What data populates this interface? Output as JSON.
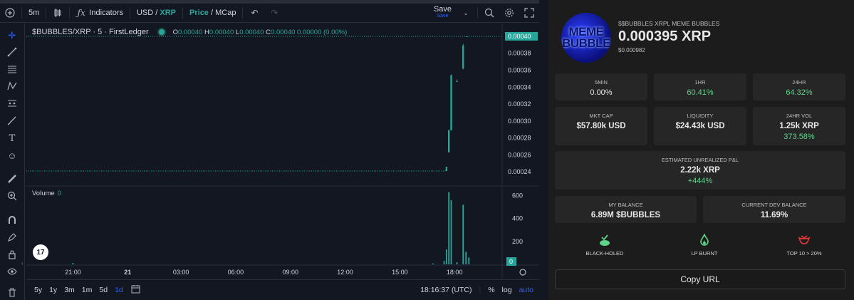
{
  "toolbar": {
    "interval": "5m",
    "indicators_label": "Indicators",
    "pair_base": "USD",
    "pair_sep": " / ",
    "pair_quote": "XRP",
    "price_label": "Price",
    "mcap_sep": " / ",
    "mcap_label": "MCap",
    "save_label": "Save",
    "save_sub": "Save"
  },
  "legend": {
    "symbol": "$BUBBLES/XRP · 5 · FirstLedger",
    "o_label": "O",
    "o": "0.00040",
    "h_label": "H",
    "h": "0.00040",
    "l_label": "L",
    "l": "0.00040",
    "c_label": "C",
    "c": "0.00040",
    "change": "0.00000 (0.00%)",
    "volume_label": "Volume",
    "volume_value": "0"
  },
  "chart_data": {
    "type": "candlestick",
    "price_axis": [
      "0.00038",
      "0.00036",
      "0.00034",
      "0.00032",
      "0.00030",
      "0.00028",
      "0.00026",
      "0.00024"
    ],
    "price_axis_values": [
      0.00038,
      0.00036,
      0.00034,
      0.00032,
      0.0003,
      0.00028,
      0.00026,
      0.00024
    ],
    "price_range": [
      0.000225,
      0.000405
    ],
    "last_price_label": "0.00040",
    "last_price": 0.0004,
    "volume_axis": [
      "600",
      "400",
      "200"
    ],
    "volume_axis_values": [
      600,
      400,
      200
    ],
    "volume_range": [
      0,
      640
    ],
    "volume_last_label": "0",
    "time_axis": [
      "21:00",
      "21",
      "03:00",
      "06:00",
      "09:00",
      "12:00",
      "15:00",
      "18:00"
    ],
    "time_axis_frac": [
      0.098,
      0.213,
      0.325,
      0.44,
      0.555,
      0.67,
      0.785,
      0.9
    ],
    "baseline_price": 0.000241,
    "candles": [
      {
        "t": 0.883,
        "o": 0.000241,
        "h": 0.000246,
        "l": 0.000241,
        "c": 0.000246
      },
      {
        "t": 0.888,
        "o": 0.000263,
        "h": 0.00029,
        "l": 0.000263,
        "c": 0.000289
      },
      {
        "t": 0.893,
        "o": 0.000289,
        "h": 0.000355,
        "l": 0.000289,
        "c": 0.000354
      },
      {
        "t": 0.905,
        "o": 0.000347,
        "h": 0.000349,
        "l": 0.000346,
        "c": 0.000347
      },
      {
        "t": 0.918,
        "o": 0.000362,
        "h": 0.000391,
        "l": 0.000361,
        "c": 0.000389
      },
      {
        "t": 0.926,
        "o": 0.0004,
        "h": 0.0004,
        "l": 0.0004,
        "c": 0.0004
      }
    ],
    "volumes": [
      {
        "t": 0.098,
        "v": 12
      },
      {
        "t": 0.855,
        "v": 8
      },
      {
        "t": 0.878,
        "v": 30
      },
      {
        "t": 0.883,
        "v": 130
      },
      {
        "t": 0.888,
        "v": 630
      },
      {
        "t": 0.893,
        "v": 560
      },
      {
        "t": 0.905,
        "v": 18
      },
      {
        "t": 0.918,
        "v": 520
      },
      {
        "t": 0.924,
        "v": 110
      },
      {
        "t": 0.93,
        "v": 60
      }
    ]
  },
  "bottom_bar": {
    "ranges": [
      "5y",
      "1y",
      "3m",
      "1m",
      "5d",
      "1d"
    ],
    "active_range": "1d",
    "time": "18:16:37 (UTC)",
    "percent": "%",
    "log": "log",
    "auto": "auto"
  },
  "token": {
    "name": "$$BUBBLES XRPL MEME BUBBLES",
    "price_xrp": "0.000395 XRP",
    "price_usd": "$0.000982",
    "avatar_text": "MEME BUBBLE"
  },
  "stats": {
    "min5_label": "5MIN",
    "min5_value": "0.00%",
    "hr1_label": "1HR",
    "hr1_value": "60.41%",
    "hr24_label": "24HR",
    "hr24_value": "64.32%",
    "mktcap_label": "MKT CAP",
    "mktcap_value": "$57.80k USD",
    "liquidity_label": "LIQUIDITY",
    "liquidity_value": "$24.43k USD",
    "vol_label": "24HR VOL",
    "vol_value": "1.25k XRP",
    "vol_change": "373.58%",
    "pnl_label": "ESTIMATED UNREALIZED P&L",
    "pnl_value": "2.22k XRP",
    "pnl_change": "+444%",
    "balance_label": "MY BALANCE",
    "balance_value": "6.89M $BUBBLES",
    "devbal_label": "CURRENT DEV BALANCE",
    "devbal_value": "11.69%"
  },
  "badges": {
    "blackholed": "BLACK-HOLED",
    "lpburnt": "LP BURNT",
    "top10": "TOP 10 > 20%"
  },
  "copy_url_label": "Copy URL",
  "colors": {
    "up": "#26a69a",
    "accent_blue": "#2962ff",
    "positive": "#5bd58a",
    "warning": "#e53935"
  }
}
